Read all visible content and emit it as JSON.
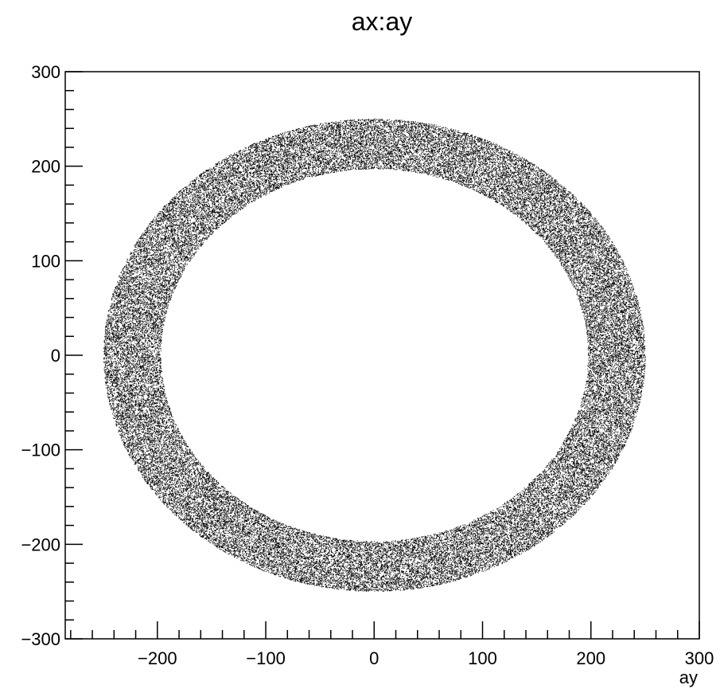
{
  "chart_data": {
    "type": "scatter",
    "title": "ax:ay",
    "xlabel": "ay",
    "ylabel": "",
    "xlim": [
      -285,
      300
    ],
    "ylim": [
      -300,
      300
    ],
    "x_ticks": [
      -200,
      -100,
      0,
      100,
      200,
      300
    ],
    "y_ticks": [
      -300,
      -200,
      -100,
      0,
      100,
      200,
      300
    ],
    "x_tick_labels": [
      "−200",
      "−100",
      "0",
      "100",
      "200",
      "300"
    ],
    "y_tick_labels": [
      "−300",
      "−200",
      "−100",
      "0",
      "100",
      "200",
      "300"
    ],
    "grid": false,
    "legend": "none",
    "marker_color": "#000000",
    "distribution": {
      "shape": "annulus",
      "center": [
        0,
        0
      ],
      "inner_radius": 197,
      "outer_radius": 250,
      "approx_point_count": 60000
    }
  }
}
